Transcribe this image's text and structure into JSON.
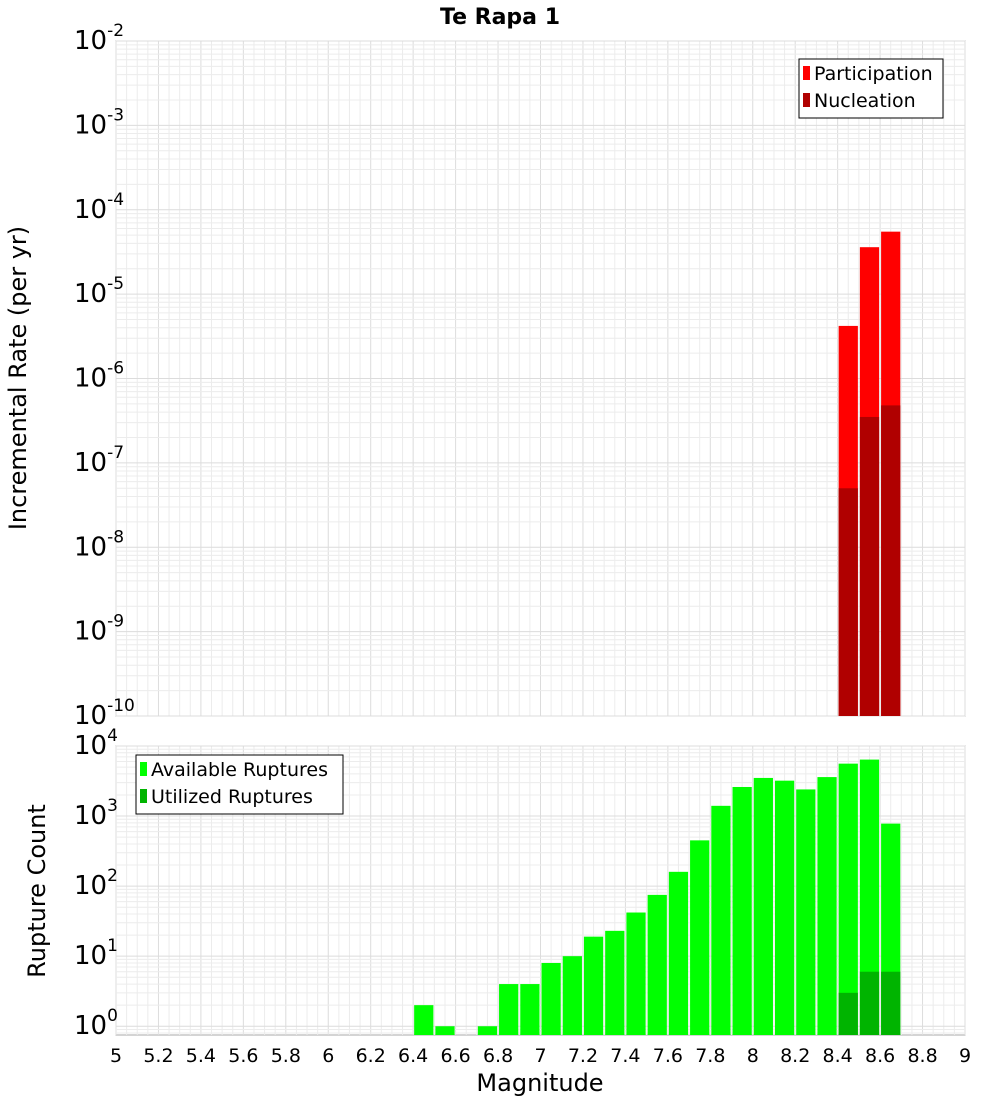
{
  "chart_data": [
    {
      "type": "bar",
      "title": "Te Rapa 1",
      "xlabel": "",
      "ylabel": "Incremental Rate (per yr)",
      "yscale": "log",
      "ylim": [
        1e-10,
        0.01
      ],
      "xlim": [
        5,
        9
      ],
      "bar_width": 0.1,
      "y_ticks": [
        {
          "base": "10",
          "exp": "-2"
        },
        {
          "base": "10",
          "exp": "-3"
        },
        {
          "base": "10",
          "exp": "-4"
        },
        {
          "base": "10",
          "exp": "-5"
        },
        {
          "base": "10",
          "exp": "-6"
        },
        {
          "base": "10",
          "exp": "-7"
        },
        {
          "base": "10",
          "exp": "-8"
        },
        {
          "base": "10",
          "exp": "-9"
        },
        {
          "base": "10",
          "exp": "-10"
        }
      ],
      "legend_position": "top-right",
      "series": [
        {
          "name": "Participation",
          "color": "#ff0000",
          "x": [
            8.45,
            8.55,
            8.65
          ],
          "values": [
            4.2e-06,
            3.6e-05,
            5.5e-05
          ]
        },
        {
          "name": "Nucleation",
          "color": "#b00000",
          "x": [
            8.45,
            8.55,
            8.65
          ],
          "values": [
            5e-08,
            3.5e-07,
            4.8e-07
          ]
        }
      ]
    },
    {
      "type": "bar",
      "title": "",
      "xlabel": "Magnitude",
      "ylabel": "Rupture Count",
      "yscale": "log",
      "ylim": [
        0.75,
        10000
      ],
      "xlim": [
        5,
        9
      ],
      "bar_width": 0.1,
      "x_ticks": [
        "5",
        "5.2",
        "5.4",
        "5.6",
        "5.8",
        "6",
        "6.2",
        "6.4",
        "6.6",
        "6.8",
        "7",
        "7.2",
        "7.4",
        "7.6",
        "7.8",
        "8",
        "8.2",
        "8.4",
        "8.6",
        "8.8",
        "9"
      ],
      "y_ticks": [
        {
          "base": "10",
          "exp": "4"
        },
        {
          "base": "10",
          "exp": "3"
        },
        {
          "base": "10",
          "exp": "2"
        },
        {
          "base": "10",
          "exp": "1"
        },
        {
          "base": "10",
          "exp": "0"
        }
      ],
      "legend_position": "top-left",
      "series": [
        {
          "name": "Available Ruptures",
          "color": "#00ff00",
          "x": [
            6.45,
            6.55,
            6.75,
            6.85,
            6.95,
            7.05,
            7.15,
            7.25,
            7.35,
            7.45,
            7.55,
            7.65,
            7.75,
            7.85,
            7.95,
            8.05,
            8.15,
            8.25,
            8.35,
            8.45,
            8.55,
            8.65
          ],
          "values": [
            2,
            1,
            1,
            4,
            4,
            8,
            10,
            19,
            23,
            42,
            75,
            160,
            450,
            1400,
            2600,
            3500,
            3200,
            2400,
            3600,
            5600,
            6400,
            780
          ]
        },
        {
          "name": "Utilized Ruptures",
          "color": "#00b400",
          "x": [
            8.45,
            8.55,
            8.65
          ],
          "values": [
            3,
            6,
            6
          ]
        }
      ]
    }
  ]
}
